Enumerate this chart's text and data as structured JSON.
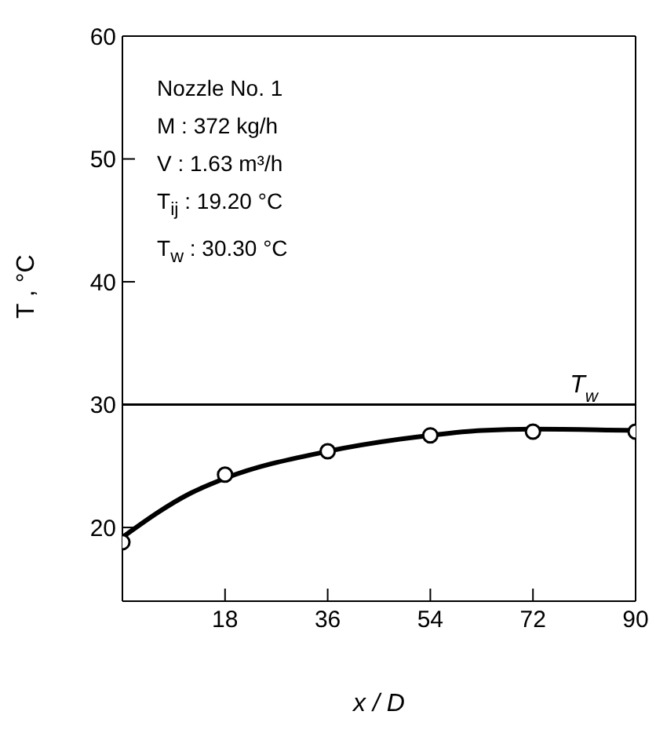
{
  "chart_data": {
    "type": "line",
    "xlabel": "x / D",
    "ylabel": "T ,  °C",
    "xlim": [
      0,
      90
    ],
    "xticks": [
      18,
      36,
      54,
      72,
      90
    ],
    "ylim": [
      14,
      60
    ],
    "yticks": [
      20,
      30,
      40,
      50,
      60
    ],
    "grid": false,
    "legend": false,
    "series": [
      {
        "type": "scatter",
        "color": "#000000",
        "marker": "circle",
        "x": [
          0,
          18,
          36,
          54,
          72,
          90
        ],
        "values": [
          18.8,
          24.3,
          26.2,
          27.5,
          27.8,
          27.8
        ]
      },
      {
        "color": "#000000",
        "marker": "none",
        "line_style": "solid",
        "x": [
          0,
          12,
          18,
          36,
          54,
          63,
          72,
          90
        ],
        "values": [
          19.2,
          22.8,
          24.0,
          26.2,
          27.5,
          27.9,
          28.0,
          27.9
        ]
      }
    ],
    "ref_lines": [
      {
        "axis": "y",
        "value": 30,
        "label": "T$_{w}$",
        "color": "#000000",
        "line_style": "solid"
      }
    ],
    "annotations": [
      "Nozzle No. 1",
      "M : 372 kg/h",
      "V :  1.63 m³/h",
      "T$_{ij}$ : 19.20 °C",
      "T$_{w}$ : 30.30 °C"
    ]
  }
}
